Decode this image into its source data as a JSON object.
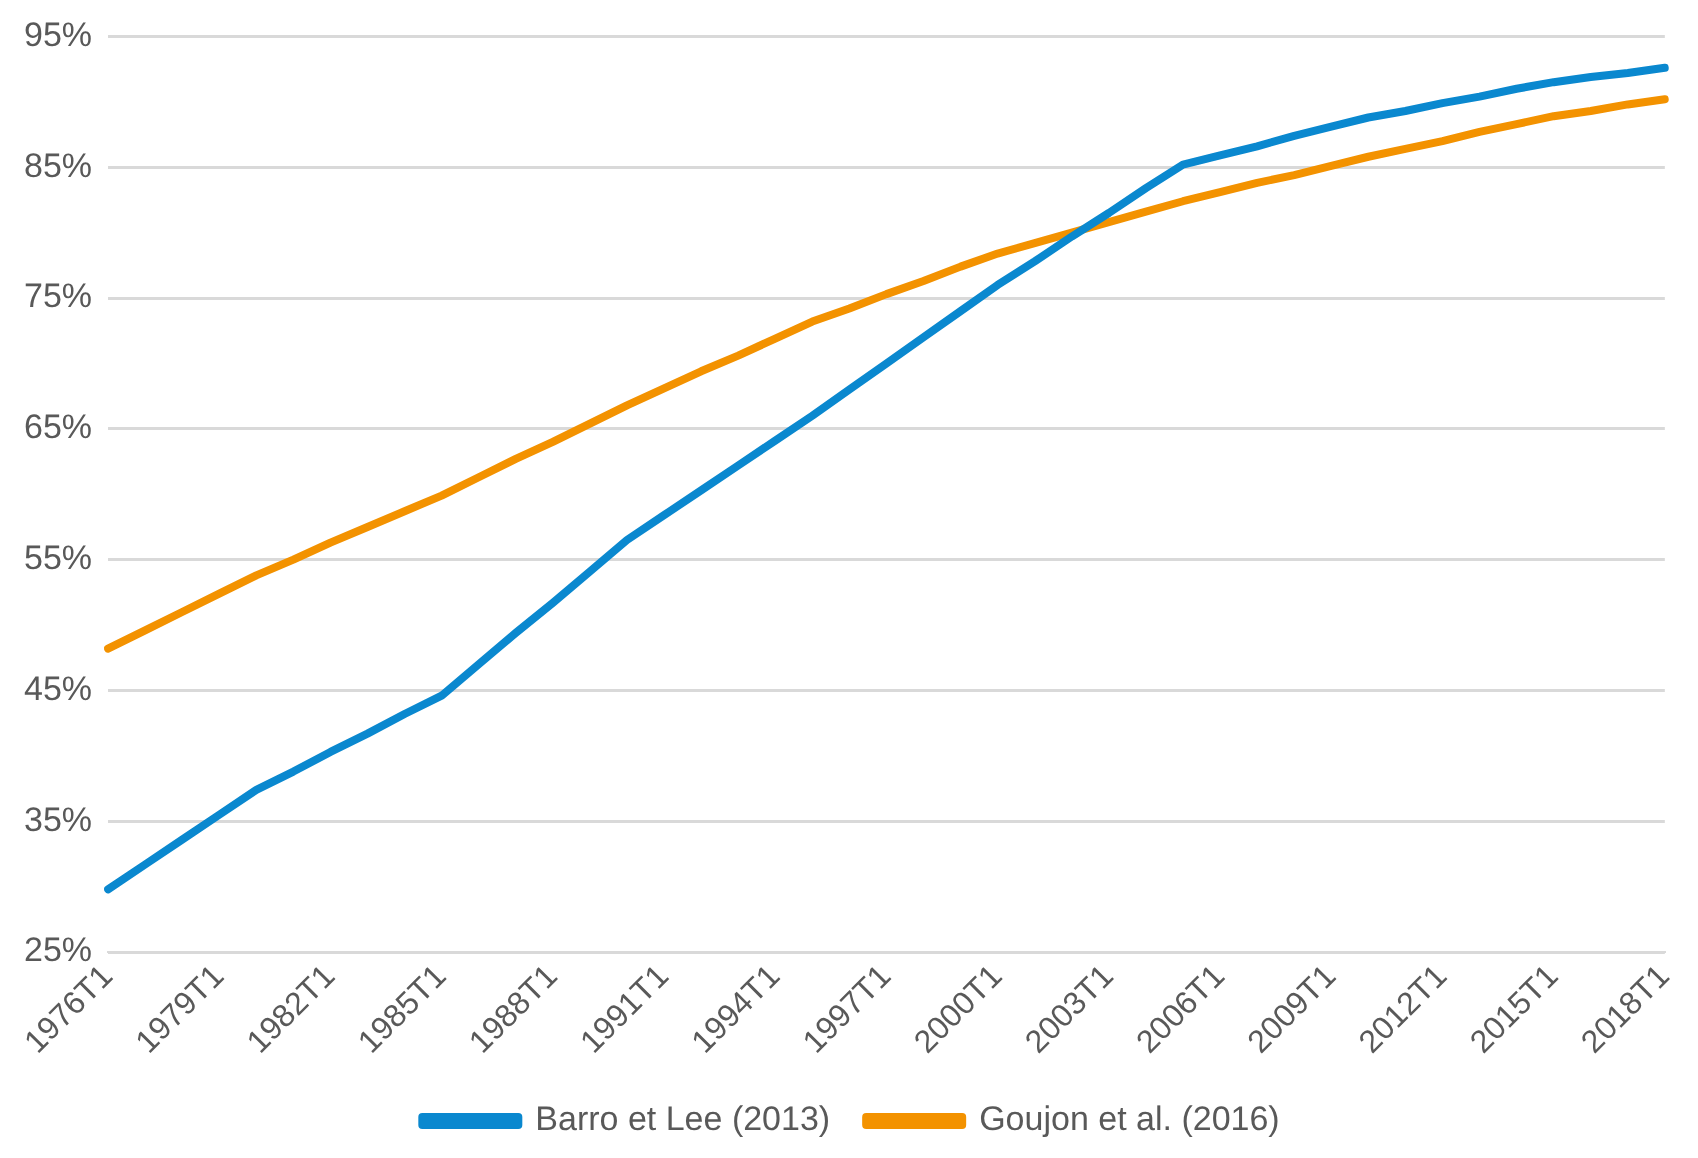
{
  "chart_data": {
    "type": "line",
    "categories": [
      "1976T1",
      null,
      null,
      "1979T1",
      null,
      null,
      "1982T1",
      null,
      null,
      "1985T1",
      null,
      null,
      "1988T1",
      null,
      null,
      "1991T1",
      null,
      null,
      "1994T1",
      null,
      null,
      "1997T1",
      null,
      null,
      "2000T1",
      null,
      null,
      "2003T1",
      null,
      null,
      "2006T1",
      null,
      null,
      "2009T1",
      null,
      null,
      "2012T1",
      null,
      null,
      "2015T1",
      null,
      null,
      "2018T1"
    ],
    "ylim": [
      25,
      95
    ],
    "yticks": [
      {
        "value": 25,
        "label": "25%"
      },
      {
        "value": 35,
        "label": "35%"
      },
      {
        "value": 45,
        "label": "45%"
      },
      {
        "value": 55,
        "label": "55%"
      },
      {
        "value": 65,
        "label": "65%"
      },
      {
        "value": 75,
        "label": "75%"
      },
      {
        "value": 85,
        "label": "85%"
      },
      {
        "value": 95,
        "label": "95%"
      }
    ],
    "grid": "y",
    "legend": "bottom",
    "marker": "none",
    "line_style": "solid",
    "series": [
      {
        "name": "Barro et Lee (2013)",
        "color": "#0a88cf",
        "values": [
          29.8,
          31.7,
          33.6,
          35.5,
          37.4,
          38.8,
          40.3,
          41.7,
          43.2,
          44.6,
          47.0,
          49.4,
          51.7,
          54.1,
          56.5,
          58.4,
          60.3,
          62.2,
          64.1,
          66.0,
          68.0,
          70.0,
          72.0,
          74.0,
          76.0,
          77.8,
          79.7,
          81.5,
          83.4,
          85.2,
          85.9,
          86.6,
          87.4,
          88.1,
          88.8,
          89.3,
          89.9,
          90.4,
          91.0,
          91.5,
          91.9,
          92.2,
          92.6
        ]
      },
      {
        "name": "Goujon et al. (2016)",
        "color": "#f39200",
        "values": [
          48.2,
          49.6,
          51.0,
          52.4,
          53.8,
          55.0,
          56.3,
          57.5,
          58.7,
          59.9,
          61.3,
          62.7,
          64.0,
          65.4,
          66.8,
          68.1,
          69.4,
          70.6,
          71.9,
          73.2,
          74.2,
          75.3,
          76.3,
          77.4,
          78.4,
          79.2,
          80.0,
          80.8,
          81.6,
          82.4,
          83.1,
          83.8,
          84.4,
          85.1,
          85.8,
          86.4,
          87.0,
          87.7,
          88.3,
          88.9,
          89.3,
          89.8,
          90.2
        ]
      }
    ]
  }
}
